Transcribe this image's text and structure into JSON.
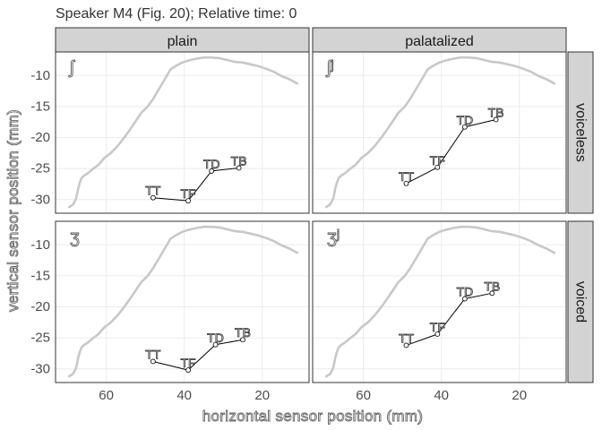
{
  "chart_data": {
    "type": "line",
    "title": "Speaker M4 (Fig. 20); Relative time: 0",
    "xlabel": "horizontal sensor position (mm)",
    "ylabel": "vertical sensor position (mm)",
    "x_reversed": true,
    "xlim": [
      73,
      8
    ],
    "ylim": [
      -32.2,
      -6.2
    ],
    "xticks": [
      "60",
      "40",
      "20"
    ],
    "xtick_values": [
      60,
      40,
      20
    ],
    "yticks": [
      "-10",
      "-15",
      "-20",
      "-25",
      "-30"
    ],
    "ytick_values": [
      -10,
      -15,
      -20,
      -25,
      -30
    ],
    "grid": true,
    "col_strips": [
      "plain",
      "palatalized"
    ],
    "row_strips": [
      "voiceless",
      "voiced"
    ],
    "colors": {
      "palate": "#c8c8c8",
      "strip_fill": "#d3d3d3",
      "grid": "#ebebeb",
      "tongue": "#000000"
    },
    "palate": {
      "x": [
        69.5,
        68.5,
        67.7,
        67.2,
        66.8,
        66.3,
        65.6,
        64.8,
        63.5,
        62,
        60.5,
        58.8,
        57,
        55.5,
        54,
        52.5,
        51,
        49.5,
        48,
        46.5,
        45,
        43.5,
        42,
        40.5,
        39,
        37,
        35,
        33,
        31,
        29,
        27,
        25,
        23,
        21,
        19,
        17,
        15,
        13,
        11
      ],
      "y": [
        -31.2,
        -30.8,
        -29.8,
        -28.2,
        -27.3,
        -26.5,
        -26.1,
        -25.8,
        -25.1,
        -24.4,
        -23.3,
        -22.5,
        -21.3,
        -20.1,
        -18.8,
        -17.4,
        -16,
        -15.1,
        -13.8,
        -12.2,
        -10.6,
        -9,
        -8.4,
        -7.9,
        -7.6,
        -7.3,
        -7.1,
        -7.1,
        -7.2,
        -7.5,
        -7.8,
        -7.9,
        -8.2,
        -8.5,
        -8.9,
        -9.4,
        -10.1,
        -10.6,
        -11.3
      ]
    },
    "panels": [
      {
        "col": 0,
        "row": 0,
        "label": "ʃ",
        "points": [
          {
            "label": "TT",
            "x": 48,
            "y": -29.7
          },
          {
            "label": "TF",
            "x": 39,
            "y": -30.2
          },
          {
            "label": "TD",
            "x": 33,
            "y": -25.4
          },
          {
            "label": "TB",
            "x": 26,
            "y": -24.9
          }
        ]
      },
      {
        "col": 1,
        "row": 0,
        "label": "ʃʲ",
        "points": [
          {
            "label": "TT",
            "x": 49,
            "y": -27.4
          },
          {
            "label": "TF",
            "x": 41,
            "y": -24.8
          },
          {
            "label": "TD",
            "x": 34,
            "y": -18.3
          },
          {
            "label": "TB",
            "x": 26,
            "y": -17.1
          }
        ]
      },
      {
        "col": 0,
        "row": 1,
        "label": "ʒ",
        "points": [
          {
            "label": "TT",
            "x": 48,
            "y": -28.8
          },
          {
            "label": "TF",
            "x": 39,
            "y": -30.2
          },
          {
            "label": "TD",
            "x": 32,
            "y": -26.1
          },
          {
            "label": "TB",
            "x": 25,
            "y": -25.3
          }
        ]
      },
      {
        "col": 1,
        "row": 1,
        "label": "ʒʲ",
        "points": [
          {
            "label": "TT",
            "x": 49,
            "y": -26.2
          },
          {
            "label": "TF",
            "x": 41,
            "y": -24.4
          },
          {
            "label": "TD",
            "x": 34,
            "y": -18.7
          },
          {
            "label": "TB",
            "x": 27,
            "y": -17.8
          }
        ]
      }
    ]
  }
}
